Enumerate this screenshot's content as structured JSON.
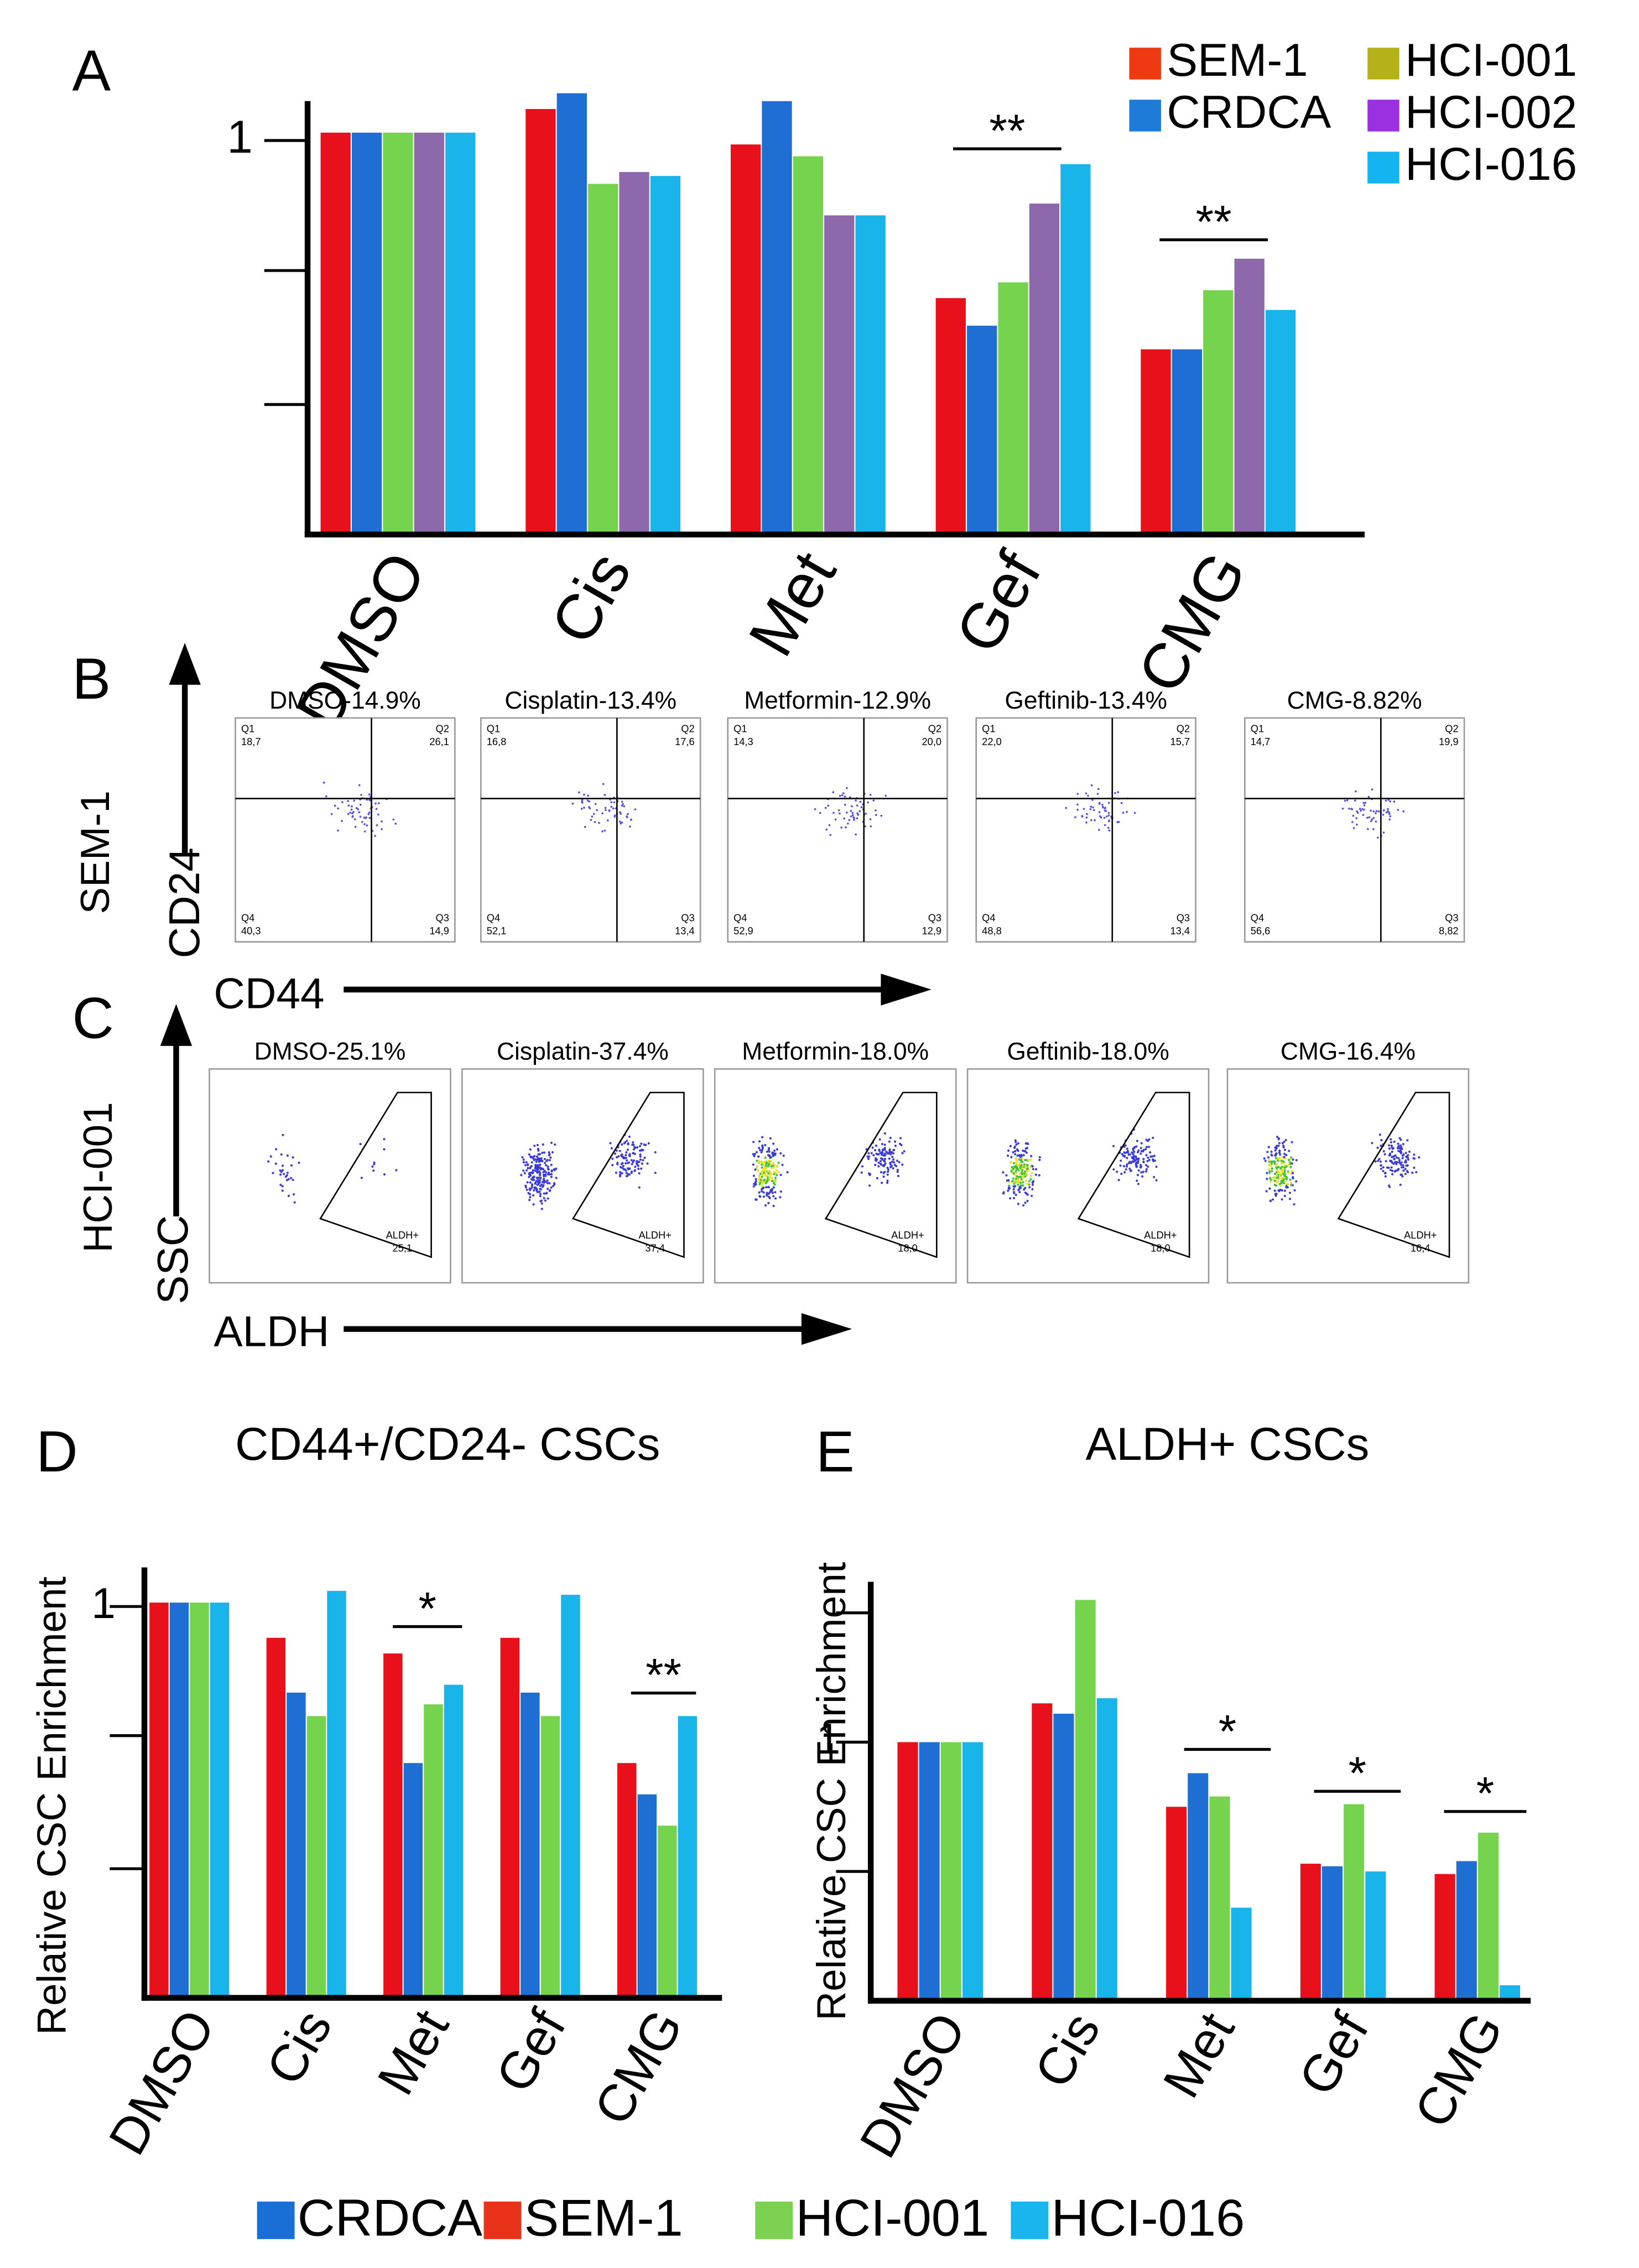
{
  "chart_data": [
    {
      "type": "bar",
      "panel": "A",
      "categories": [
        "DMSO",
        "Cis",
        "Met",
        "Gef",
        "CMG"
      ],
      "series": [
        {
          "name": "SEM-1",
          "color": "#e8101a",
          "legend_color": "#ee3a12",
          "values": [
            1.02,
            1.08,
            0.99,
            0.6,
            0.47
          ]
        },
        {
          "name": "CRDCA",
          "color": "#1f6ed4",
          "legend_color": "#1f7bd8",
          "values": [
            1.02,
            1.12,
            1.1,
            0.53,
            0.47
          ]
        },
        {
          "name": "HCI-001",
          "color": "#76d34d",
          "legend_color": "#b5b11a",
          "values": [
            1.02,
            0.89,
            0.96,
            0.64,
            0.62
          ]
        },
        {
          "name": "HCI-002",
          "color": "#8d68ab",
          "legend_color": "#9b30e0",
          "values": [
            1.02,
            0.92,
            0.81,
            0.84,
            0.7
          ]
        },
        {
          "name": "HCI-016",
          "color": "#18b4ea",
          "legend_color": "#14b4f0",
          "values": [
            1.02,
            0.91,
            0.81,
            0.94,
            0.57
          ]
        }
      ],
      "ylim": [
        0,
        1.1
      ],
      "yticks": [
        {
          "value": 0.33,
          "label": null
        },
        {
          "value": 0.67,
          "label": null
        },
        1
      ],
      "annotations": [
        "**",
        "**"
      ]
    },
    {
      "type": "bar",
      "panel": "D",
      "title": "CD44+/CD24- CSCs",
      "ylabel": "Relative CSC Enrichment",
      "categories": [
        "DMSO",
        "Cis",
        "Met",
        "Gef",
        "CMG"
      ],
      "series": [
        {
          "name": "SEM-1",
          "color": "#e8101a",
          "values": [
            1.01,
            0.92,
            0.88,
            0.92,
            0.6
          ]
        },
        {
          "name": "CRDCA",
          "color": "#1f6ed4",
          "values": [
            1.01,
            0.78,
            0.6,
            0.78,
            0.52
          ]
        },
        {
          "name": "HCI-001",
          "color": "#76d34d",
          "values": [
            1.01,
            0.72,
            0.75,
            0.72,
            0.44
          ]
        },
        {
          "name": "HCI-016",
          "color": "#18b4ea",
          "values": [
            1.01,
            1.04,
            0.8,
            1.03,
            0.72
          ]
        }
      ],
      "ylim": [
        0,
        1.1
      ],
      "yticks": [
        {
          "value": 0.33,
          "label": null
        },
        {
          "value": 0.67,
          "label": null
        },
        1
      ],
      "annotations": [
        "*",
        "**"
      ]
    },
    {
      "type": "bar",
      "panel": "E",
      "title": "ALDH+ CSCs",
      "ylabel": "Relative CSC Enrichment",
      "categories": [
        "DMSO",
        "Cis",
        "Met",
        "Gef",
        "CMG"
      ],
      "series": [
        {
          "name": "SEM-1",
          "color": "#e8101a",
          "values": [
            1.0,
            1.15,
            0.75,
            0.53,
            0.49
          ]
        },
        {
          "name": "CRDCA",
          "color": "#1f6ed4",
          "values": [
            1.0,
            1.11,
            0.88,
            0.52,
            0.54
          ]
        },
        {
          "name": "HCI-001",
          "color": "#76d34d",
          "values": [
            1.0,
            1.55,
            0.79,
            0.76,
            0.65
          ]
        },
        {
          "name": "HCI-016",
          "color": "#18b4ea",
          "values": [
            1.0,
            1.17,
            0.36,
            0.5,
            0.06
          ]
        }
      ],
      "ylim": [
        0,
        1.62
      ],
      "yticks": [
        {
          "value": 0.5,
          "label": null
        },
        1,
        {
          "value": 1.5,
          "label": null
        }
      ],
      "annotations": [
        "*",
        "*",
        "*"
      ]
    }
  ],
  "shared_legend": [
    {
      "name": "CRDCA",
      "color": "#1a6fd6"
    },
    {
      "name": "SEM-1",
      "color": "#e8321a"
    },
    {
      "name": "HCI-001",
      "color": "#7cd152"
    },
    {
      "name": "HCI-016",
      "color": "#19b5ee"
    }
  ],
  "flow_panels": [
    {
      "panel": "B",
      "row_label": "SEM-1",
      "y_label": "CD24",
      "x_label": "CD44",
      "quadrant_names": [
        "Q1",
        "Q2",
        "Q3",
        "Q4"
      ],
      "plots": [
        {
          "title": "DMSO-14.9%",
          "quadrants": [
            "18,7",
            "26,1",
            "14,9",
            "40,3"
          ]
        },
        {
          "title": "Cisplatin-13.4%",
          "quadrants": [
            "16,8",
            "17,6",
            "13,4",
            "52,1"
          ]
        },
        {
          "title": "Metformin-12.9%",
          "quadrants": [
            "14,3",
            "20,0",
            "12,9",
            "52,9"
          ]
        },
        {
          "title": "Geftinib-13.4%",
          "quadrants": [
            "22,0",
            "15,7",
            "13,4",
            "48,8"
          ]
        },
        {
          "title": "CMG-8.82%",
          "quadrants": [
            "14,7",
            "19,9",
            "8,82",
            "56,6"
          ]
        }
      ]
    },
    {
      "panel": "C",
      "row_label": "HCI-001",
      "y_label": "SSC",
      "x_label": "ALDH",
      "gate_name": "ALDH+",
      "plots": [
        {
          "title": "DMSO-25.1%",
          "gate_value": "25,1"
        },
        {
          "title": "Cisplatin-37.4%",
          "gate_value": "37,4"
        },
        {
          "title": "Metformin-18.0%",
          "gate_value": "18,0"
        },
        {
          "title": "Geftinib-18.0%",
          "gate_value": "18,0"
        },
        {
          "title": "CMG-16.4%",
          "gate_value": "16,4"
        }
      ]
    }
  ]
}
